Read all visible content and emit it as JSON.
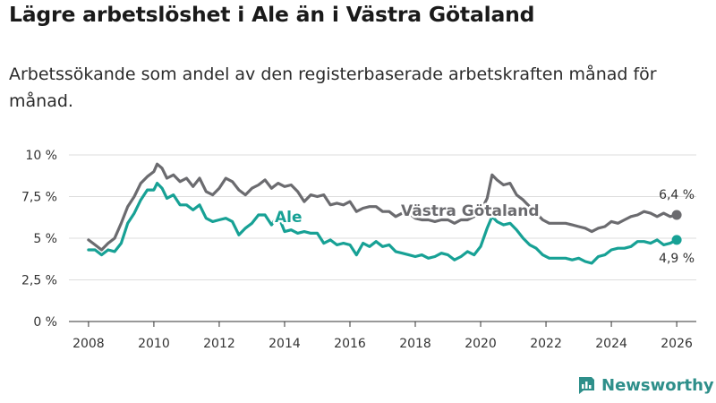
{
  "header": {
    "title": "Lägre arbetslöshet i Ale än i Västra Götaland",
    "subtitle": "Arbetssökande som andel av den registerbaserade arbetskraften månad för månad."
  },
  "brand": {
    "name": "Newsworthy",
    "icon": "newsworthy-logo-icon"
  },
  "colors": {
    "ale": "#17a195",
    "vastra_gotaland": "#6b6b6f",
    "grid": "#dddddd"
  },
  "chart_data": {
    "type": "line",
    "title": "Lägre arbetslöshet i Ale än i Västra Götaland",
    "xlabel": "",
    "ylabel": "",
    "xlim": [
      2007.4,
      2026.6
    ],
    "ylim": [
      0,
      10
    ],
    "x_ticks": [
      2008,
      2010,
      2012,
      2014,
      2016,
      2018,
      2020,
      2022,
      2024,
      2026
    ],
    "x_tick_labels": [
      "2008",
      "2010",
      "2012",
      "2014",
      "2016",
      "2018",
      "2020",
      "2022",
      "2024",
      "2026"
    ],
    "y_ticks": [
      0,
      2.5,
      5,
      7.5,
      10
    ],
    "y_tick_labels": [
      "0 %",
      "2,5 %",
      "5 %",
      "7,5 %",
      "10 %"
    ],
    "grid": "horizontal",
    "series": [
      {
        "name": "Västra Götaland",
        "label": "Västra Götaland",
        "end_label": "6,4 %",
        "points": [
          [
            2008.0,
            4.9
          ],
          [
            2008.2,
            4.6
          ],
          [
            2008.4,
            4.3
          ],
          [
            2008.6,
            4.7
          ],
          [
            2008.8,
            5.0
          ],
          [
            2009.0,
            5.9
          ],
          [
            2009.2,
            6.9
          ],
          [
            2009.4,
            7.5
          ],
          [
            2009.6,
            8.3
          ],
          [
            2009.8,
            8.7
          ],
          [
            2010.0,
            9.0
          ],
          [
            2010.1,
            9.45
          ],
          [
            2010.25,
            9.2
          ],
          [
            2010.4,
            8.6
          ],
          [
            2010.6,
            8.8
          ],
          [
            2010.8,
            8.4
          ],
          [
            2011.0,
            8.6
          ],
          [
            2011.2,
            8.1
          ],
          [
            2011.4,
            8.6
          ],
          [
            2011.6,
            7.8
          ],
          [
            2011.8,
            7.6
          ],
          [
            2012.0,
            8.0
          ],
          [
            2012.2,
            8.6
          ],
          [
            2012.4,
            8.4
          ],
          [
            2012.6,
            7.9
          ],
          [
            2012.8,
            7.6
          ],
          [
            2013.0,
            8.0
          ],
          [
            2013.2,
            8.2
          ],
          [
            2013.4,
            8.5
          ],
          [
            2013.6,
            8.0
          ],
          [
            2013.8,
            8.3
          ],
          [
            2014.0,
            8.1
          ],
          [
            2014.2,
            8.2
          ],
          [
            2014.4,
            7.8
          ],
          [
            2014.6,
            7.2
          ],
          [
            2014.8,
            7.6
          ],
          [
            2015.0,
            7.5
          ],
          [
            2015.2,
            7.6
          ],
          [
            2015.4,
            7.0
          ],
          [
            2015.6,
            7.1
          ],
          [
            2015.8,
            7.0
          ],
          [
            2016.0,
            7.2
          ],
          [
            2016.2,
            6.6
          ],
          [
            2016.4,
            6.8
          ],
          [
            2016.6,
            6.9
          ],
          [
            2016.8,
            6.9
          ],
          [
            2017.0,
            6.6
          ],
          [
            2017.2,
            6.6
          ],
          [
            2017.4,
            6.3
          ],
          [
            2017.6,
            6.5
          ],
          [
            2017.8,
            6.5
          ],
          [
            2018.0,
            6.2
          ],
          [
            2018.2,
            6.1
          ],
          [
            2018.4,
            6.1
          ],
          [
            2018.6,
            6.0
          ],
          [
            2018.8,
            6.1
          ],
          [
            2019.0,
            6.1
          ],
          [
            2019.2,
            5.9
          ],
          [
            2019.4,
            6.1
          ],
          [
            2019.6,
            6.1
          ],
          [
            2019.8,
            6.3
          ],
          [
            2020.0,
            6.6
          ],
          [
            2020.2,
            7.4
          ],
          [
            2020.35,
            8.8
          ],
          [
            2020.5,
            8.5
          ],
          [
            2020.7,
            8.2
          ],
          [
            2020.9,
            8.3
          ],
          [
            2021.1,
            7.6
          ],
          [
            2021.3,
            7.3
          ],
          [
            2021.5,
            6.9
          ],
          [
            2021.7,
            6.5
          ],
          [
            2021.9,
            6.1
          ],
          [
            2022.1,
            5.9
          ],
          [
            2022.3,
            5.9
          ],
          [
            2022.6,
            5.9
          ],
          [
            2022.8,
            5.8
          ],
          [
            2023.0,
            5.7
          ],
          [
            2023.2,
            5.6
          ],
          [
            2023.4,
            5.4
          ],
          [
            2023.6,
            5.6
          ],
          [
            2023.8,
            5.7
          ],
          [
            2024.0,
            6.0
          ],
          [
            2024.2,
            5.9
          ],
          [
            2024.4,
            6.1
          ],
          [
            2024.6,
            6.3
          ],
          [
            2024.8,
            6.4
          ],
          [
            2025.0,
            6.6
          ],
          [
            2025.2,
            6.5
          ],
          [
            2025.4,
            6.3
          ],
          [
            2025.6,
            6.5
          ],
          [
            2025.8,
            6.3
          ],
          [
            2026.0,
            6.4
          ]
        ]
      },
      {
        "name": "Ale",
        "label": "Ale",
        "end_label": "4,9 %",
        "points": [
          [
            2008.0,
            4.3
          ],
          [
            2008.2,
            4.3
          ],
          [
            2008.4,
            4.0
          ],
          [
            2008.6,
            4.3
          ],
          [
            2008.8,
            4.2
          ],
          [
            2009.0,
            4.7
          ],
          [
            2009.2,
            5.9
          ],
          [
            2009.4,
            6.5
          ],
          [
            2009.6,
            7.3
          ],
          [
            2009.8,
            7.9
          ],
          [
            2010.0,
            7.9
          ],
          [
            2010.1,
            8.3
          ],
          [
            2010.25,
            8.0
          ],
          [
            2010.4,
            7.4
          ],
          [
            2010.6,
            7.6
          ],
          [
            2010.8,
            7.0
          ],
          [
            2011.0,
            7.0
          ],
          [
            2011.2,
            6.7
          ],
          [
            2011.4,
            7.0
          ],
          [
            2011.6,
            6.2
          ],
          [
            2011.8,
            6.0
          ],
          [
            2012.0,
            6.1
          ],
          [
            2012.2,
            6.2
          ],
          [
            2012.4,
            6.0
          ],
          [
            2012.6,
            5.2
          ],
          [
            2012.8,
            5.6
          ],
          [
            2013.0,
            5.9
          ],
          [
            2013.2,
            6.4
          ],
          [
            2013.4,
            6.4
          ],
          [
            2013.6,
            5.8
          ],
          [
            2013.8,
            6.4
          ],
          [
            2014.0,
            5.4
          ],
          [
            2014.2,
            5.5
          ],
          [
            2014.4,
            5.3
          ],
          [
            2014.6,
            5.4
          ],
          [
            2014.8,
            5.3
          ],
          [
            2015.0,
            5.3
          ],
          [
            2015.2,
            4.7
          ],
          [
            2015.4,
            4.9
          ],
          [
            2015.6,
            4.6
          ],
          [
            2015.8,
            4.7
          ],
          [
            2016.0,
            4.6
          ],
          [
            2016.2,
            4.0
          ],
          [
            2016.4,
            4.7
          ],
          [
            2016.6,
            4.5
          ],
          [
            2016.8,
            4.8
          ],
          [
            2017.0,
            4.5
          ],
          [
            2017.2,
            4.6
          ],
          [
            2017.4,
            4.2
          ],
          [
            2017.6,
            4.1
          ],
          [
            2017.8,
            4.0
          ],
          [
            2018.0,
            3.9
          ],
          [
            2018.2,
            4.0
          ],
          [
            2018.4,
            3.8
          ],
          [
            2018.6,
            3.9
          ],
          [
            2018.8,
            4.1
          ],
          [
            2019.0,
            4.0
          ],
          [
            2019.2,
            3.7
          ],
          [
            2019.4,
            3.9
          ],
          [
            2019.6,
            4.2
          ],
          [
            2019.8,
            4.0
          ],
          [
            2020.0,
            4.5
          ],
          [
            2020.2,
            5.6
          ],
          [
            2020.35,
            6.3
          ],
          [
            2020.5,
            6.0
          ],
          [
            2020.7,
            5.8
          ],
          [
            2020.9,
            5.9
          ],
          [
            2021.1,
            5.5
          ],
          [
            2021.3,
            5.0
          ],
          [
            2021.5,
            4.6
          ],
          [
            2021.7,
            4.4
          ],
          [
            2021.9,
            4.0
          ],
          [
            2022.1,
            3.8
          ],
          [
            2022.3,
            3.8
          ],
          [
            2022.6,
            3.8
          ],
          [
            2022.8,
            3.7
          ],
          [
            2023.0,
            3.8
          ],
          [
            2023.2,
            3.6
          ],
          [
            2023.4,
            3.5
          ],
          [
            2023.6,
            3.9
          ],
          [
            2023.8,
            4.0
          ],
          [
            2024.0,
            4.3
          ],
          [
            2024.2,
            4.4
          ],
          [
            2024.4,
            4.4
          ],
          [
            2024.6,
            4.5
          ],
          [
            2024.8,
            4.8
          ],
          [
            2025.0,
            4.8
          ],
          [
            2025.2,
            4.7
          ],
          [
            2025.4,
            4.9
          ],
          [
            2025.6,
            4.6
          ],
          [
            2025.8,
            4.7
          ],
          [
            2026.0,
            4.9
          ]
        ]
      }
    ]
  }
}
